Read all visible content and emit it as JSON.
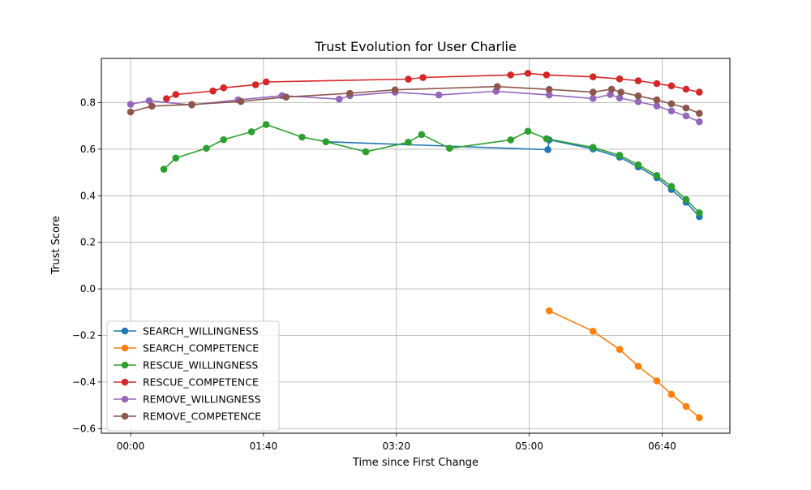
{
  "chart_data": {
    "type": "line",
    "title": "Trust Evolution for User Charlie",
    "xlabel": "Time since First Change",
    "ylabel": "Trust Score",
    "x_unit": "minutes",
    "xlim": [
      -22,
      451
    ],
    "ylim": [
      -0.62,
      0.99
    ],
    "x_ticks": [
      {
        "value": 0,
        "label": "00:00"
      },
      {
        "value": 100,
        "label": "01:40"
      },
      {
        "value": 200,
        "label": "03:20"
      },
      {
        "value": 300,
        "label": "05:00"
      },
      {
        "value": 400,
        "label": "06:40"
      }
    ],
    "y_ticks": [
      {
        "value": -0.6,
        "label": "−0.6"
      },
      {
        "value": -0.4,
        "label": "−0.4"
      },
      {
        "value": -0.2,
        "label": "−0.2"
      },
      {
        "value": 0.0,
        "label": "0.0"
      },
      {
        "value": 0.2,
        "label": "0.2"
      },
      {
        "value": 0.4,
        "label": "0.4"
      },
      {
        "value": 0.6,
        "label": "0.6"
      },
      {
        "value": 0.8,
        "label": "0.8"
      }
    ],
    "grid": true,
    "legend_position": "lower-left",
    "series": [
      {
        "name": "SEARCH_WILLINGNESS",
        "color": "#1f77b4",
        "points": [
          [
            147,
            0.632
          ],
          [
            314,
            0.598
          ],
          [
            315,
            0.64
          ],
          [
            348,
            0.601
          ],
          [
            368,
            0.566
          ],
          [
            382,
            0.524
          ],
          [
            396,
            0.478
          ],
          [
            407,
            0.427
          ],
          [
            418,
            0.372
          ],
          [
            428,
            0.31
          ]
        ]
      },
      {
        "name": "SEARCH_COMPETENCE",
        "color": "#ff7f0e",
        "points": [
          [
            315,
            -0.094
          ],
          [
            348,
            -0.182
          ],
          [
            368,
            -0.26
          ],
          [
            382,
            -0.332
          ],
          [
            396,
            -0.395
          ],
          [
            407,
            -0.453
          ],
          [
            418,
            -0.505
          ],
          [
            428,
            -0.553
          ]
        ]
      },
      {
        "name": "RESCUE_WILLINGNESS",
        "color": "#2ca02c",
        "points": [
          [
            25,
            0.514
          ],
          [
            34,
            0.562
          ],
          [
            57,
            0.604
          ],
          [
            70,
            0.641
          ],
          [
            91,
            0.675
          ],
          [
            102,
            0.706
          ],
          [
            129,
            0.652
          ],
          [
            147,
            0.632
          ],
          [
            177,
            0.589
          ],
          [
            209,
            0.63
          ],
          [
            219,
            0.663
          ],
          [
            240,
            0.604
          ],
          [
            286,
            0.64
          ],
          [
            299,
            0.677
          ],
          [
            313,
            0.645
          ],
          [
            348,
            0.608
          ],
          [
            368,
            0.574
          ],
          [
            382,
            0.533
          ],
          [
            396,
            0.487
          ],
          [
            407,
            0.44
          ],
          [
            418,
            0.384
          ],
          [
            428,
            0.327
          ]
        ]
      },
      {
        "name": "RESCUE_COMPETENCE",
        "color": "#d62728",
        "points": [
          [
            27,
            0.817
          ],
          [
            34,
            0.835
          ],
          [
            62,
            0.85
          ],
          [
            70,
            0.864
          ],
          [
            94,
            0.877
          ],
          [
            102,
            0.889
          ],
          [
            209,
            0.901
          ],
          [
            220,
            0.908
          ],
          [
            286,
            0.919
          ],
          [
            299,
            0.926
          ],
          [
            313,
            0.919
          ],
          [
            348,
            0.911
          ],
          [
            368,
            0.902
          ],
          [
            382,
            0.894
          ],
          [
            396,
            0.882
          ],
          [
            407,
            0.872
          ],
          [
            418,
            0.858
          ],
          [
            428,
            0.845
          ]
        ]
      },
      {
        "name": "REMOVE_WILLINGNESS",
        "color": "#9467bd",
        "points": [
          [
            0,
            0.793
          ],
          [
            14,
            0.808
          ],
          [
            46,
            0.79
          ],
          [
            81,
            0.812
          ],
          [
            114,
            0.83
          ],
          [
            157,
            0.815
          ],
          [
            165,
            0.83
          ],
          [
            199,
            0.845
          ],
          [
            232,
            0.833
          ],
          [
            275,
            0.849
          ],
          [
            315,
            0.833
          ],
          [
            348,
            0.818
          ],
          [
            361,
            0.835
          ],
          [
            368,
            0.82
          ],
          [
            382,
            0.804
          ],
          [
            396,
            0.786
          ],
          [
            407,
            0.764
          ],
          [
            418,
            0.743
          ],
          [
            428,
            0.718
          ]
        ]
      },
      {
        "name": "REMOVE_COMPETENCE",
        "color": "#8c564b",
        "points": [
          [
            0,
            0.76
          ],
          [
            16,
            0.785
          ],
          [
            46,
            0.792
          ],
          [
            83,
            0.805
          ],
          [
            117,
            0.824
          ],
          [
            165,
            0.84
          ],
          [
            199,
            0.855
          ],
          [
            276,
            0.869
          ],
          [
            315,
            0.857
          ],
          [
            348,
            0.845
          ],
          [
            362,
            0.858
          ],
          [
            369,
            0.845
          ],
          [
            382,
            0.829
          ],
          [
            396,
            0.812
          ],
          [
            407,
            0.795
          ],
          [
            418,
            0.777
          ],
          [
            428,
            0.754
          ]
        ]
      }
    ]
  }
}
